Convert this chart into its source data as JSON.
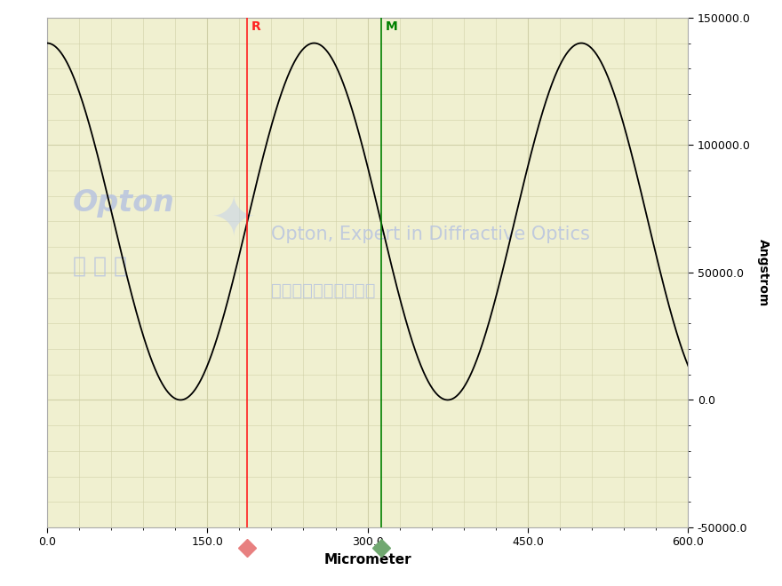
{
  "bg_color": "#f5f5d5",
  "plot_bg_color": "#f0f0d0",
  "grid_color": "#d0d0a8",
  "line_color": "#000000",
  "xlabel": "Micrometer",
  "ylabel": "Angstrom",
  "xlim": [
    0.0,
    600.0
  ],
  "ylim": [
    -50000.0,
    150000.0
  ],
  "xticks": [
    0.0,
    150.0,
    300.0,
    450.0,
    600.0
  ],
  "yticks": [
    -50000.0,
    0.0,
    50000.0,
    100000.0,
    150000.0
  ],
  "x_minor_ticks": 30.0,
  "y_minor_ticks": 10000.0,
  "marker_R_x": 187.5,
  "marker_R_color": "#ff2020",
  "marker_M_x": 312.5,
  "marker_M_color": "#008000",
  "period": 250.0,
  "amplitude": 140000.0,
  "x_start": 0.0,
  "x_end": 600.0,
  "num_points": 3000,
  "watermark_color": "#b8c4e0",
  "xlabel_fontsize": 11,
  "ylabel_fontsize": 10,
  "tick_fontsize": 9
}
